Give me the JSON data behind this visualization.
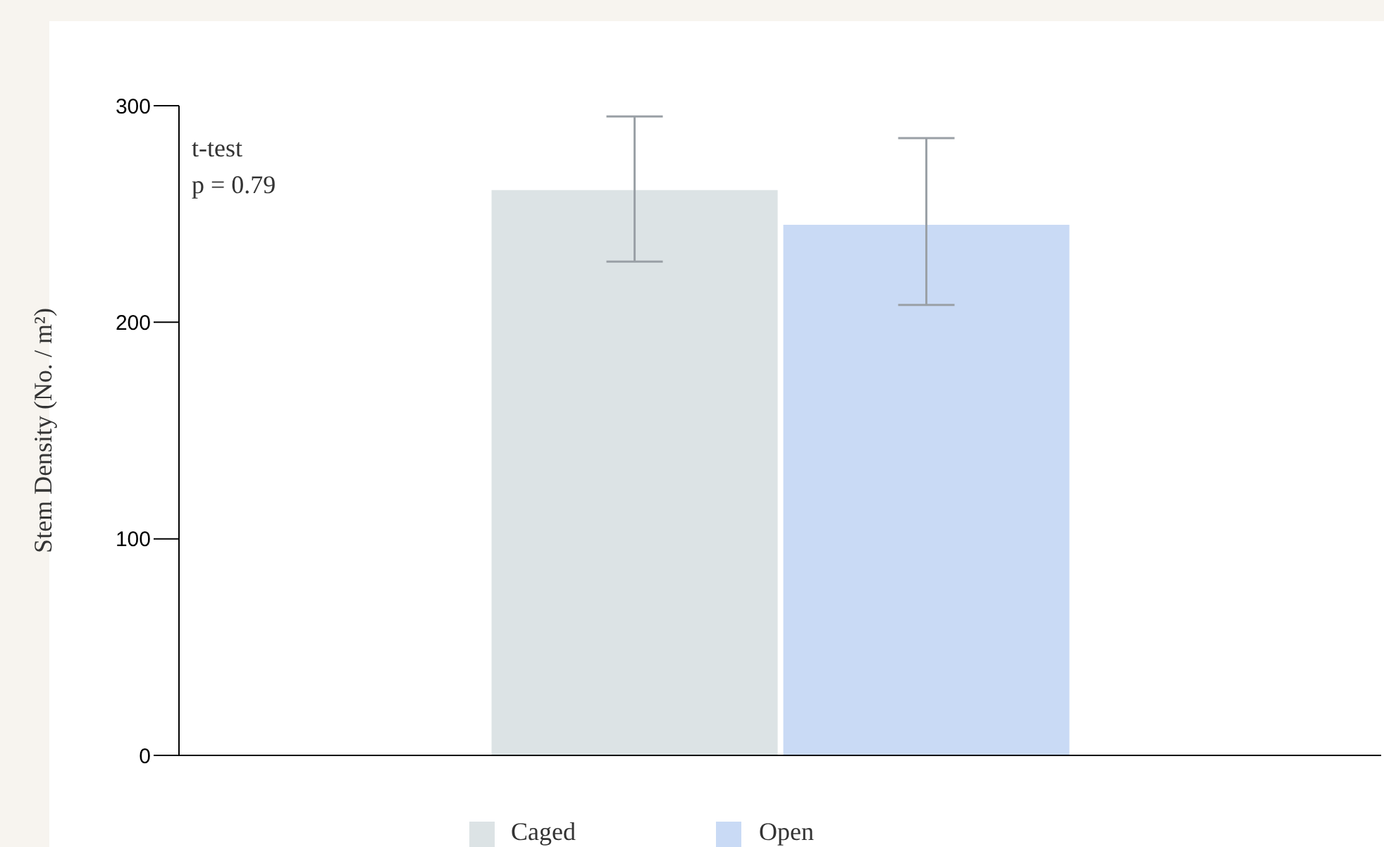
{
  "chart_data": {
    "type": "bar",
    "ylabel": "Stem Density (No. / m²)",
    "categories": [
      null
    ],
    "series": [
      {
        "name": "Caged",
        "color": "#dce3e5",
        "values": [
          261
        ],
        "errors": [
          [
            228,
            295
          ]
        ]
      },
      {
        "name": "Open",
        "color": "#c9daf5",
        "values": [
          245
        ],
        "errors": [
          [
            208,
            285
          ]
        ]
      }
    ],
    "ylim": [
      0,
      300
    ],
    "yticks": [
      0,
      100,
      200,
      300
    ],
    "tick_labels": "y",
    "grid": false,
    "legend": "bottom",
    "annotations": [
      "t-test",
      "p = 0.79"
    ]
  }
}
